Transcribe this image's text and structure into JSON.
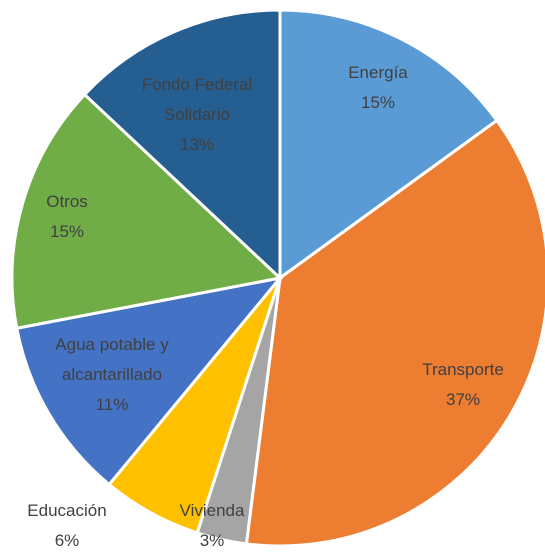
{
  "chart_data": {
    "type": "pie",
    "categories": [
      "Energía",
      "Transporte",
      "Vivienda",
      "Educación",
      "Agua potable y alcantarillado",
      "Otros",
      "Fondo Federal Solidario"
    ],
    "values": [
      15,
      37,
      3,
      6,
      11,
      15,
      13
    ],
    "value_labels": [
      "15%",
      "37%",
      "3%",
      "6%",
      "11%",
      "15%",
      "13%"
    ],
    "colors": [
      "#5b9bd5",
      "#ed7d31",
      "#a5a5a5",
      "#ffc000",
      "#4472c4",
      "#70ad47",
      "#255e91"
    ]
  }
}
